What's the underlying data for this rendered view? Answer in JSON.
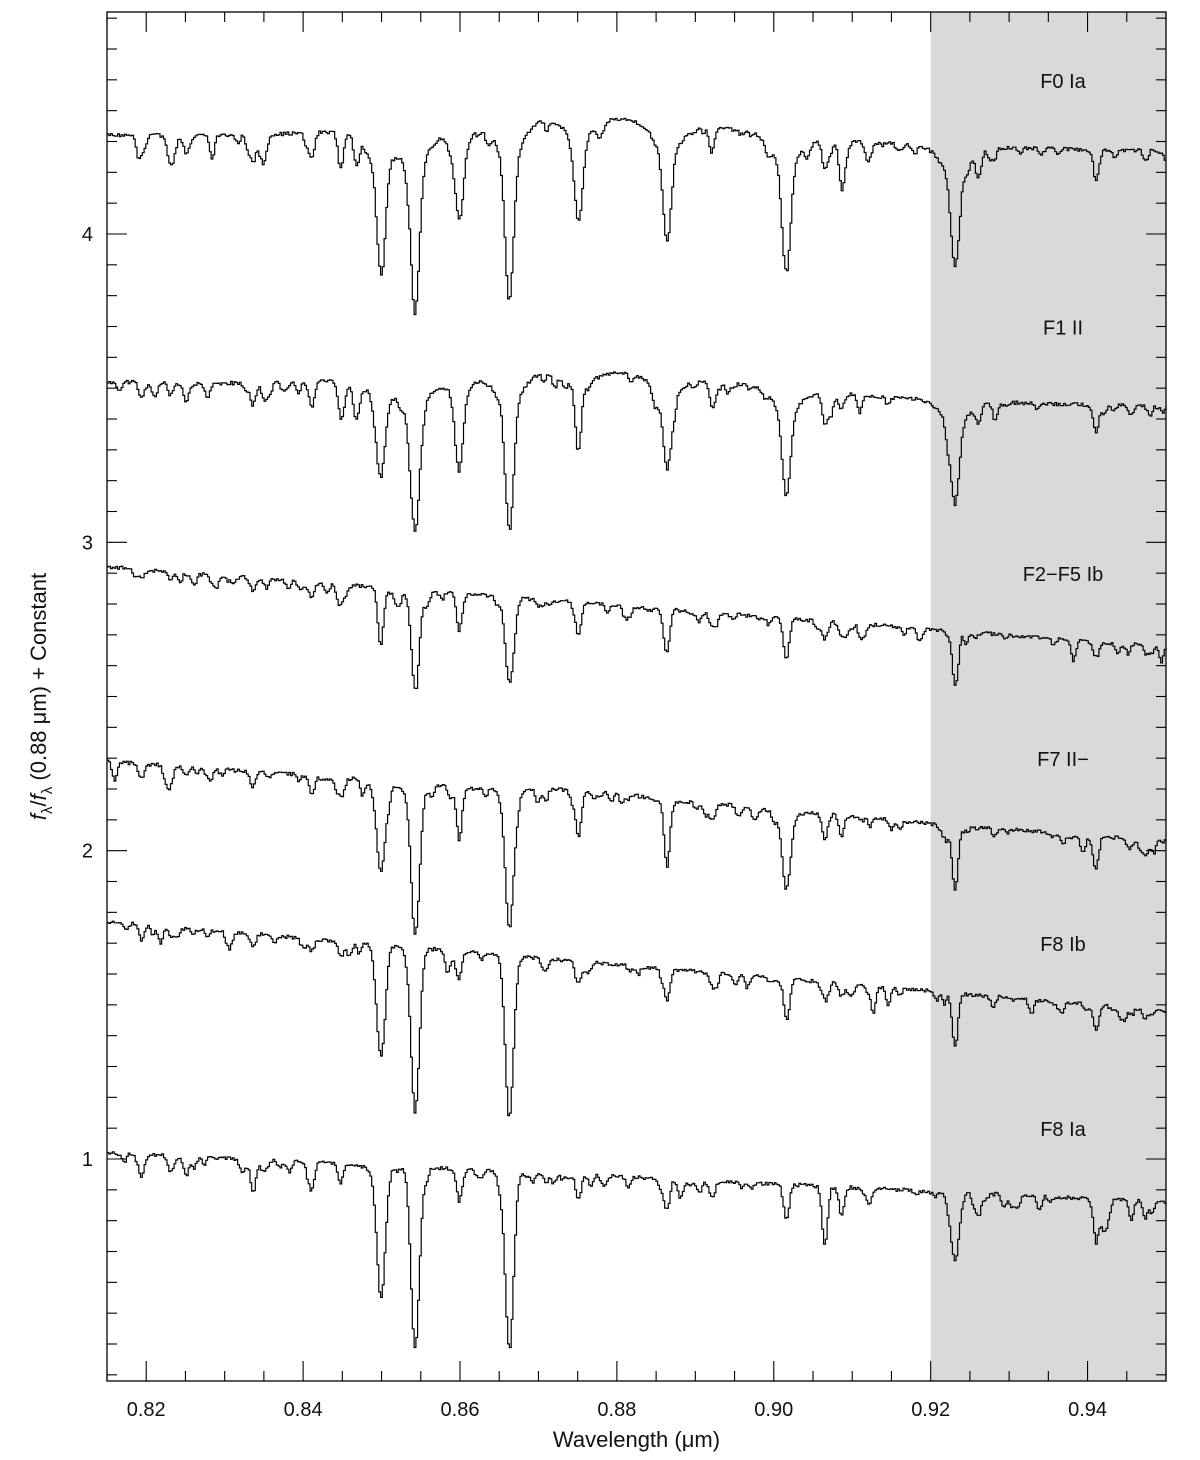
{
  "chart_data": {
    "type": "line",
    "title": "",
    "xlabel": "Wavelength (μm)",
    "ylabel_parts": {
      "f1": "f",
      "sub1": "λ",
      "slash": "/",
      "f2": "f",
      "sub2": "λ",
      "rest": " (0.88 μm) + Constant"
    },
    "xlim": [
      0.815,
      0.95
    ],
    "ylim": [
      0.28,
      4.72
    ],
    "x_ticks": [
      {
        "value": 0.82,
        "label": "0.82"
      },
      {
        "value": 0.84,
        "label": "0.84"
      },
      {
        "value": 0.86,
        "label": "0.86"
      },
      {
        "value": 0.88,
        "label": "0.88"
      },
      {
        "value": 0.9,
        "label": "0.90"
      },
      {
        "value": 0.92,
        "label": "0.92"
      },
      {
        "value": 0.94,
        "label": "0.94"
      }
    ],
    "y_ticks": [
      {
        "value": 1,
        "label": "1"
      },
      {
        "value": 2,
        "label": "2"
      },
      {
        "value": 3,
        "label": "3"
      },
      {
        "value": 4,
        "label": "4"
      }
    ],
    "shaded_region": {
      "x": [
        0.92,
        0.95
      ],
      "color": "#d9d9db"
    },
    "line_color": "#000000",
    "series": [
      {
        "name": "F0 Ia",
        "continuum_start": 4.32,
        "continuum_end": 4.27,
        "label_y": 4.5,
        "hump": 0.08,
        "lines": [
          [
            0.8193,
            0.04
          ],
          [
            0.823,
            0.05
          ],
          [
            0.825,
            0.06
          ],
          [
            0.8335,
            0.09
          ],
          [
            0.835,
            0.06
          ],
          [
            0.841,
            0.08
          ],
          [
            0.8447,
            0.12
          ],
          [
            0.8467,
            0.1
          ],
          [
            0.8498,
            0.35
          ],
          [
            0.8542,
            0.45
          ],
          [
            0.8598,
            0.24
          ],
          [
            0.8662,
            0.45
          ],
          [
            0.875,
            0.25
          ],
          [
            0.8863,
            0.3
          ],
          [
            0.892,
            0.08
          ],
          [
            0.9015,
            0.33
          ],
          [
            0.9064,
            0.1
          ],
          [
            0.9085,
            0.08
          ],
          [
            0.912,
            0.06
          ],
          [
            0.923,
            0.3
          ],
          [
            0.926,
            0.08
          ],
          [
            0.941,
            0.1
          ]
        ]
      },
      {
        "name": "F1 II",
        "continuum_start": 3.52,
        "continuum_end": 3.44,
        "label_y": 3.7,
        "hump": 0.07,
        "lines": [
          [
            0.8193,
            0.05
          ],
          [
            0.823,
            0.04
          ],
          [
            0.825,
            0.06
          ],
          [
            0.8335,
            0.07
          ],
          [
            0.835,
            0.06
          ],
          [
            0.841,
            0.08
          ],
          [
            0.8447,
            0.11
          ],
          [
            0.8467,
            0.1
          ],
          [
            0.8498,
            0.25
          ],
          [
            0.8542,
            0.4
          ],
          [
            0.8598,
            0.22
          ],
          [
            0.8662,
            0.4
          ],
          [
            0.875,
            0.2
          ],
          [
            0.8863,
            0.24
          ],
          [
            0.892,
            0.06
          ],
          [
            0.9015,
            0.28
          ],
          [
            0.9064,
            0.08
          ],
          [
            0.9085,
            0.05
          ],
          [
            0.923,
            0.27
          ],
          [
            0.926,
            0.06
          ],
          [
            0.941,
            0.07
          ]
        ]
      },
      {
        "name": "F2−F5 Ib",
        "continuum_start": 2.92,
        "continuum_end": 2.66,
        "label_y": 2.9,
        "hump": 0.0,
        "lines": [
          [
            0.8193,
            0.03
          ],
          [
            0.823,
            0.03
          ],
          [
            0.8335,
            0.04
          ],
          [
            0.841,
            0.05
          ],
          [
            0.8447,
            0.05
          ],
          [
            0.8498,
            0.18
          ],
          [
            0.8542,
            0.3
          ],
          [
            0.8598,
            0.12
          ],
          [
            0.8662,
            0.28
          ],
          [
            0.875,
            0.1
          ],
          [
            0.8863,
            0.12
          ],
          [
            0.892,
            0.04
          ],
          [
            0.9015,
            0.13
          ],
          [
            0.9064,
            0.06
          ],
          [
            0.9085,
            0.04
          ],
          [
            0.923,
            0.16
          ],
          [
            0.941,
            0.05
          ]
        ]
      },
      {
        "name": "F7 II−",
        "continuum_start": 2.29,
        "continuum_end": 2.03,
        "label_y": 2.3,
        "hump": 0.02,
        "lines": [
          [
            0.8193,
            0.05
          ],
          [
            0.823,
            0.04
          ],
          [
            0.825,
            0.03
          ],
          [
            0.8335,
            0.05
          ],
          [
            0.841,
            0.06
          ],
          [
            0.8447,
            0.05
          ],
          [
            0.8498,
            0.28
          ],
          [
            0.8542,
            0.47
          ],
          [
            0.8598,
            0.17
          ],
          [
            0.8662,
            0.43
          ],
          [
            0.875,
            0.15
          ],
          [
            0.8863,
            0.2
          ],
          [
            0.892,
            0.05
          ],
          [
            0.9015,
            0.24
          ],
          [
            0.9064,
            0.08
          ],
          [
            0.9085,
            0.05
          ],
          [
            0.923,
            0.2
          ],
          [
            0.941,
            0.07
          ]
        ]
      },
      {
        "name": "F8 Ib",
        "continuum_start": 1.77,
        "continuum_end": 1.48,
        "label_y": 1.7,
        "hump": 0.0,
        "lines": [
          [
            0.8193,
            0.05
          ],
          [
            0.823,
            0.03
          ],
          [
            0.8335,
            0.04
          ],
          [
            0.841,
            0.04
          ],
          [
            0.8447,
            0.05
          ],
          [
            0.8498,
            0.35
          ],
          [
            0.8542,
            0.52
          ],
          [
            0.8598,
            0.08
          ],
          [
            0.8662,
            0.5
          ],
          [
            0.875,
            0.06
          ],
          [
            0.8863,
            0.1
          ],
          [
            0.892,
            0.04
          ],
          [
            0.9015,
            0.12
          ],
          [
            0.9064,
            0.05
          ],
          [
            0.9085,
            0.04
          ],
          [
            0.923,
            0.14
          ],
          [
            0.941,
            0.08
          ]
        ]
      },
      {
        "name": "F8 Ia",
        "continuum_start": 1.02,
        "continuum_end": 0.86,
        "label_y": 1.1,
        "hump": 0.0,
        "lines": [
          [
            0.8193,
            0.07
          ],
          [
            0.823,
            0.05
          ],
          [
            0.825,
            0.06
          ],
          [
            0.8335,
            0.08
          ],
          [
            0.835,
            0.04
          ],
          [
            0.841,
            0.05
          ],
          [
            0.8447,
            0.06
          ],
          [
            0.8498,
            0.42
          ],
          [
            0.8542,
            0.58
          ],
          [
            0.8598,
            0.1
          ],
          [
            0.8662,
            0.58
          ],
          [
            0.875,
            0.08
          ],
          [
            0.8863,
            0.1
          ],
          [
            0.892,
            0.05
          ],
          [
            0.9015,
            0.12
          ],
          [
            0.9064,
            0.19
          ],
          [
            0.9085,
            0.07
          ],
          [
            0.912,
            0.05
          ],
          [
            0.923,
            0.22
          ],
          [
            0.926,
            0.06
          ],
          [
            0.941,
            0.14
          ],
          [
            0.942,
            0.08
          ]
        ]
      }
    ]
  }
}
